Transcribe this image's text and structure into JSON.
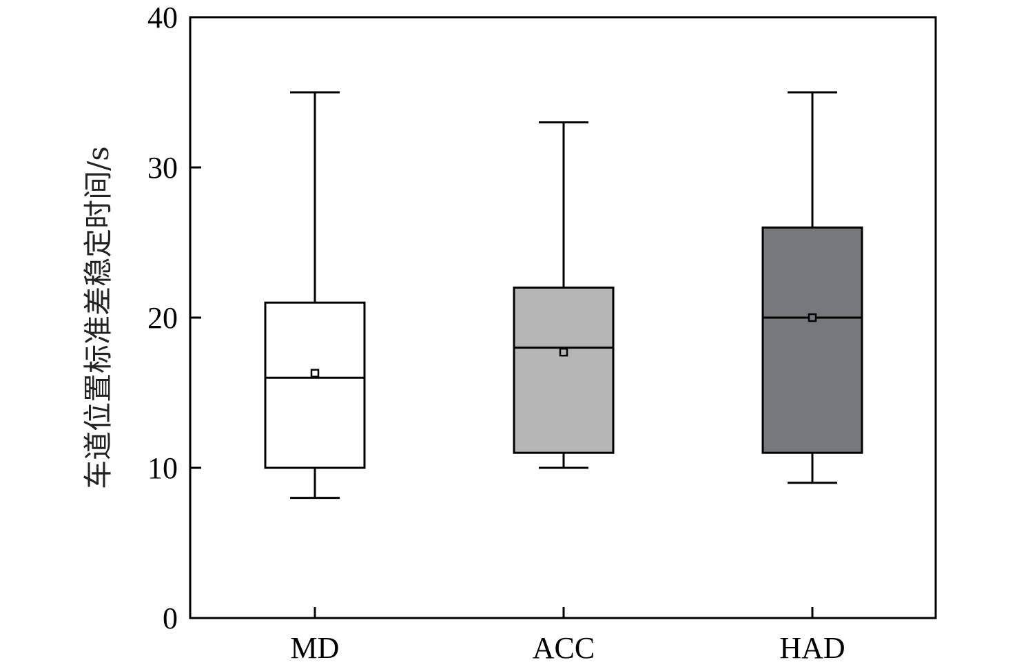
{
  "chart_data": {
    "type": "box",
    "title": "",
    "xlabel": "",
    "ylabel": "车道位置标准差稳定时间/s",
    "ylim": [
      0,
      40
    ],
    "yticks": [
      0,
      10,
      20,
      30,
      40
    ],
    "grid": false,
    "legend": "none",
    "categories": [
      "MD",
      "ACC",
      "HAD"
    ],
    "series": [
      {
        "category": "MD",
        "whisker_low": 8,
        "q1": 10,
        "median": 16,
        "q3": 21,
        "whisker_high": 35,
        "mean": 16.3,
        "fill": "#ffffff"
      },
      {
        "category": "ACC",
        "whisker_low": 10,
        "q1": 11,
        "median": 18,
        "q3": 22,
        "whisker_high": 33,
        "mean": 17.7,
        "fill": "#b6b6b6"
      },
      {
        "category": "HAD",
        "whisker_low": 9,
        "q1": 11,
        "median": 20,
        "q3": 26,
        "whisker_high": 35,
        "mean": 20.0,
        "fill": "#76787d"
      }
    ]
  }
}
